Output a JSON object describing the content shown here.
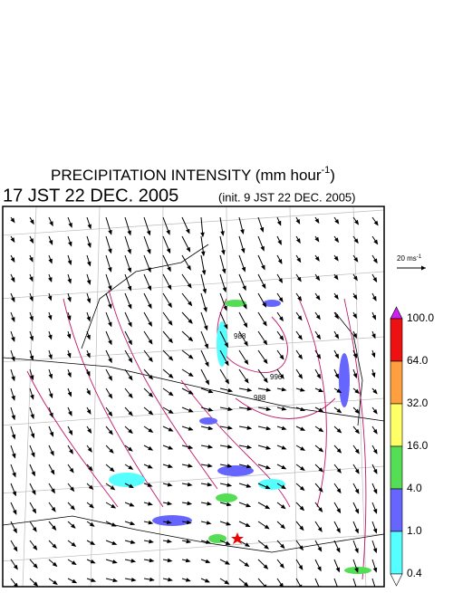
{
  "header": {
    "title": "PRECIPITATION INTENSITY (mm hour",
    "title_superscript": "-1",
    "title_close": ")",
    "time": "17 JST 22 DEC. 2005",
    "init": "(init. 9 JST 22 DEC. 2005)"
  },
  "wind_scale": {
    "label": "20 ms",
    "superscript": "-1"
  },
  "contour_labels": [
    "988",
    "988",
    "996"
  ],
  "colorbar": {
    "labels": [
      "100.0",
      "64.0",
      "32.0",
      "16.0",
      "4.0",
      "1.0",
      "0.4"
    ],
    "colors": [
      "#ee1111",
      "#ffa040",
      "#ffff66",
      "#55dd55",
      "#6666ff",
      "#55ffff"
    ],
    "top_color": "#cc22ee"
  }
}
